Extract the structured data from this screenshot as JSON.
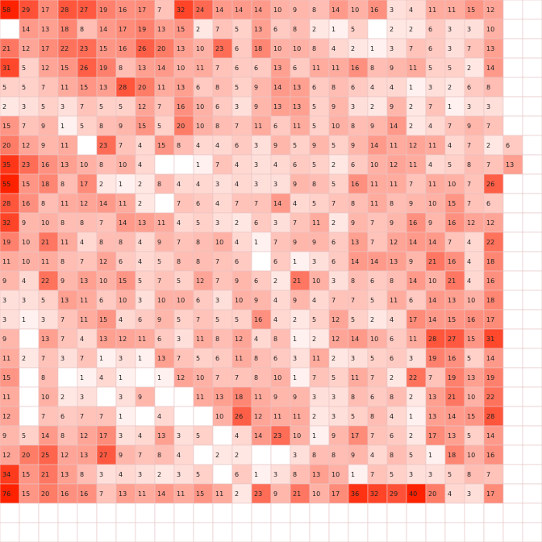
{
  "chart_data": {
    "type": "heatmap",
    "n_rows": 28,
    "n_cols": 28,
    "color_scale": {
      "low": "#ffffff",
      "high": "#ff2200"
    },
    "rows": [
      [
        58,
        29,
        17,
        28,
        27,
        19,
        16,
        17,
        7,
        32,
        24,
        14,
        14,
        14,
        10,
        9,
        8,
        14,
        10,
        16,
        3,
        4,
        11,
        11,
        15,
        12,
        null,
        null
      ],
      [
        null,
        14,
        13,
        18,
        8,
        14,
        17,
        19,
        13,
        15,
        2,
        7,
        5,
        13,
        6,
        8,
        2,
        1,
        5,
        null,
        2,
        2,
        6,
        3,
        3,
        10,
        null,
        null
      ],
      [
        21,
        12,
        17,
        22,
        23,
        15,
        16,
        26,
        20,
        13,
        10,
        23,
        6,
        18,
        10,
        10,
        8,
        4,
        2,
        1,
        3,
        7,
        6,
        3,
        7,
        13,
        null,
        null
      ],
      [
        31,
        5,
        12,
        15,
        26,
        19,
        8,
        13,
        14,
        10,
        11,
        7,
        6,
        6,
        13,
        6,
        11,
        11,
        16,
        8,
        9,
        11,
        5,
        5,
        2,
        14,
        null,
        null
      ],
      [
        5,
        5,
        7,
        11,
        15,
        13,
        28,
        20,
        11,
        13,
        6,
        8,
        5,
        9,
        14,
        13,
        6,
        8,
        6,
        4,
        4,
        1,
        3,
        2,
        6,
        8,
        null,
        null
      ],
      [
        2,
        3,
        5,
        3,
        7,
        5,
        5,
        12,
        7,
        16,
        10,
        6,
        3,
        9,
        13,
        13,
        5,
        9,
        3,
        2,
        9,
        2,
        7,
        1,
        3,
        3,
        null,
        null
      ],
      [
        15,
        7,
        9,
        1,
        5,
        8,
        9,
        15,
        5,
        20,
        10,
        8,
        7,
        11,
        6,
        11,
        5,
        10,
        8,
        9,
        14,
        2,
        4,
        7,
        9,
        7,
        null,
        null
      ],
      [
        20,
        12,
        9,
        11,
        null,
        23,
        7,
        4,
        15,
        8,
        4,
        4,
        6,
        3,
        9,
        5,
        9,
        5,
        9,
        14,
        11,
        12,
        11,
        4,
        7,
        2,
        6,
        null
      ],
      [
        35,
        23,
        16,
        13,
        10,
        8,
        10,
        4,
        null,
        null,
        1,
        7,
        4,
        3,
        4,
        6,
        5,
        2,
        6,
        10,
        12,
        11,
        4,
        5,
        8,
        7,
        13,
        null
      ],
      [
        55,
        15,
        18,
        8,
        17,
        2,
        1,
        2,
        8,
        4,
        4,
        3,
        4,
        3,
        3,
        9,
        8,
        5,
        16,
        11,
        11,
        7,
        11,
        10,
        7,
        26,
        null,
        null
      ],
      [
        28,
        16,
        8,
        11,
        12,
        14,
        11,
        2,
        null,
        7,
        6,
        4,
        7,
        7,
        14,
        4,
        5,
        7,
        8,
        11,
        8,
        9,
        10,
        15,
        7,
        6,
        null,
        null
      ],
      [
        32,
        9,
        10,
        8,
        8,
        7,
        14,
        13,
        11,
        4,
        5,
        3,
        2,
        6,
        3,
        7,
        11,
        2,
        9,
        7,
        9,
        16,
        9,
        16,
        12,
        12,
        null,
        null
      ],
      [
        19,
        10,
        21,
        11,
        4,
        8,
        8,
        4,
        9,
        7,
        8,
        10,
        4,
        1,
        7,
        9,
        9,
        6,
        13,
        7,
        12,
        14,
        14,
        7,
        4,
        22,
        null,
        null
      ],
      [
        11,
        10,
        11,
        8,
        7,
        12,
        6,
        4,
        5,
        8,
        8,
        7,
        6,
        null,
        6,
        1,
        3,
        6,
        14,
        14,
        13,
        9,
        21,
        16,
        4,
        18,
        null,
        null
      ],
      [
        9,
        4,
        22,
        9,
        13,
        10,
        15,
        5,
        7,
        5,
        12,
        7,
        9,
        6,
        2,
        21,
        10,
        3,
        8,
        6,
        8,
        14,
        10,
        21,
        4,
        16,
        null,
        null
      ],
      [
        3,
        3,
        5,
        13,
        11,
        6,
        10,
        3,
        10,
        10,
        6,
        3,
        10,
        9,
        4,
        9,
        4,
        7,
        7,
        5,
        11,
        6,
        14,
        13,
        10,
        18,
        null,
        null
      ],
      [
        3,
        1,
        3,
        7,
        11,
        15,
        4,
        6,
        9,
        5,
        7,
        5,
        5,
        16,
        4,
        2,
        5,
        12,
        5,
        2,
        4,
        17,
        14,
        15,
        16,
        17,
        null,
        null
      ],
      [
        9,
        null,
        13,
        7,
        4,
        13,
        12,
        11,
        6,
        3,
        11,
        8,
        12,
        4,
        8,
        1,
        2,
        12,
        14,
        10,
        6,
        11,
        28,
        27,
        15,
        31,
        null,
        null
      ],
      [
        11,
        2,
        7,
        3,
        7,
        1,
        3,
        1,
        13,
        7,
        5,
        6,
        11,
        8,
        6,
        3,
        11,
        2,
        3,
        5,
        6,
        3,
        19,
        16,
        5,
        14,
        null,
        null
      ],
      [
        15,
        null,
        8,
        null,
        1,
        4,
        1,
        null,
        1,
        12,
        10,
        7,
        7,
        8,
        10,
        1,
        7,
        5,
        11,
        7,
        2,
        22,
        7,
        19,
        13,
        19,
        null,
        null
      ],
      [
        11,
        null,
        10,
        2,
        3,
        null,
        3,
        9,
        null,
        null,
        11,
        13,
        18,
        11,
        9,
        9,
        3,
        3,
        8,
        6,
        8,
        2,
        13,
        21,
        10,
        22,
        null,
        null
      ],
      [
        12,
        null,
        7,
        6,
        7,
        7,
        1,
        null,
        4,
        null,
        null,
        10,
        26,
        12,
        11,
        11,
        2,
        3,
        5,
        8,
        4,
        1,
        13,
        14,
        15,
        28,
        null,
        null
      ],
      [
        9,
        5,
        14,
        8,
        12,
        17,
        3,
        4,
        13,
        3,
        5,
        null,
        4,
        14,
        23,
        10,
        1,
        9,
        17,
        7,
        6,
        2,
        17,
        13,
        5,
        14,
        null,
        null
      ],
      [
        12,
        20,
        25,
        12,
        13,
        27,
        9,
        7,
        8,
        4,
        null,
        2,
        2,
        null,
        null,
        3,
        8,
        8,
        9,
        4,
        8,
        5,
        1,
        18,
        10,
        16,
        null,
        null
      ],
      [
        34,
        15,
        21,
        13,
        8,
        3,
        4,
        3,
        2,
        3,
        5,
        null,
        6,
        1,
        3,
        8,
        13,
        10,
        1,
        7,
        5,
        3,
        3,
        5,
        8,
        7,
        null,
        null
      ],
      [
        76,
        15,
        20,
        16,
        16,
        7,
        13,
        11,
        14,
        11,
        15,
        11,
        2,
        23,
        9,
        21,
        10,
        17,
        36,
        32,
        29,
        40,
        20,
        4,
        3,
        17,
        null,
        null
      ],
      [
        null,
        null,
        null,
        null,
        null,
        null,
        null,
        null,
        null,
        null,
        null,
        null,
        null,
        null,
        null,
        null,
        null,
        null,
        null,
        null,
        null,
        null,
        null,
        null,
        null,
        null,
        null,
        null
      ],
      [
        null,
        null,
        null,
        null,
        null,
        null,
        null,
        null,
        null,
        null,
        null,
        null,
        null,
        null,
        null,
        null,
        null,
        null,
        null,
        null,
        null,
        null,
        null,
        null,
        null,
        null,
        null,
        null
      ]
    ]
  }
}
